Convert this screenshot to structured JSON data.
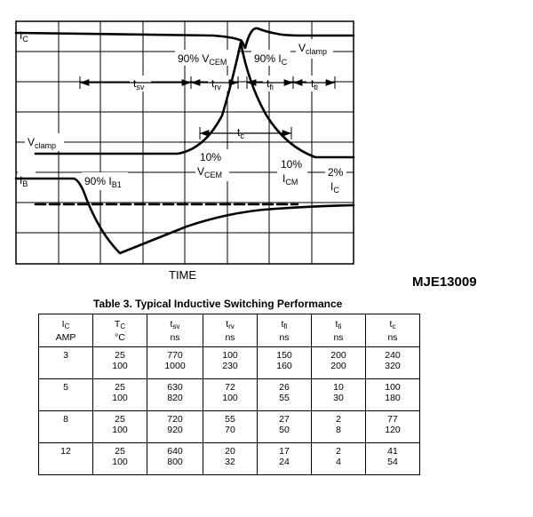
{
  "waveform": {
    "labels": {
      "ic": "I",
      "ic_sub": "C",
      "vclamp_top": "V",
      "vclamp_top_sub": "clamp",
      "pct90_vcem": "90% V",
      "pct90_vcem_sub": "CEM",
      "pct90_ic": "90% I",
      "pct90_ic_sub": "C",
      "tsv": "t",
      "tsv_sub": "sv",
      "trv": "t",
      "trv_sub": "rv",
      "tfi": "t",
      "tfi_sub": "fi",
      "tti": "t",
      "tti_sub": "ti",
      "tc": "t",
      "tc_sub": "c",
      "vclamp_left": "V",
      "vclamp_left_sub": "clamp",
      "pct10_vcem_a": "10%",
      "pct10_vcem_b": "V",
      "pct10_vcem_b_sub": "CEM",
      "pct10_icm_a": "10%",
      "pct10_icm_b": "I",
      "pct10_icm_b_sub": "CM",
      "pct2_ic_a": "2%",
      "pct2_ic_b": "I",
      "pct2_ic_b_sub": "C",
      "ib": "I",
      "ib_sub": "B",
      "pct90_ib": "90% I",
      "pct90_ib_sub": "B1"
    },
    "time_label": "TIME"
  },
  "part_number": "MJE13009",
  "table": {
    "caption": "Table 3. Typical Inductive Switching Performance",
    "headers": [
      {
        "main": "I",
        "sub": "C",
        "unit": "AMP"
      },
      {
        "main": "T",
        "sub": "C",
        "unit": "°C"
      },
      {
        "main": "t",
        "sub": "sv",
        "unit": "ns"
      },
      {
        "main": "t",
        "sub": "rv",
        "unit": "ns"
      },
      {
        "main": "t",
        "sub": "fi",
        "unit": "ns"
      },
      {
        "main": "t",
        "sub": "ti",
        "unit": "ns"
      },
      {
        "main": "t",
        "sub": "c",
        "unit": "ns"
      }
    ],
    "rows": [
      {
        "ic": "3",
        "tc": [
          "25",
          "100"
        ],
        "tsv": [
          "770",
          "1000"
        ],
        "trv": [
          "100",
          "230"
        ],
        "tfi": [
          "150",
          "160"
        ],
        "tti": [
          "200",
          "200"
        ],
        "tcx": [
          "240",
          "320"
        ]
      },
      {
        "ic": "5",
        "tc": [
          "25",
          "100"
        ],
        "tsv": [
          "630",
          "820"
        ],
        "trv": [
          "72",
          "100"
        ],
        "tfi": [
          "26",
          "55"
        ],
        "tti": [
          "10",
          "30"
        ],
        "tcx": [
          "100",
          "180"
        ]
      },
      {
        "ic": "8",
        "tc": [
          "25",
          "100"
        ],
        "tsv": [
          "720",
          "920"
        ],
        "trv": [
          "55",
          "70"
        ],
        "tfi": [
          "27",
          "50"
        ],
        "tti": [
          "2",
          "8"
        ],
        "tcx": [
          "77",
          "120"
        ]
      },
      {
        "ic": "12",
        "tc": [
          "25",
          "100"
        ],
        "tsv": [
          "640",
          "800"
        ],
        "trv": [
          "20",
          "32"
        ],
        "tfi": [
          "17",
          "24"
        ],
        "tti": [
          "2",
          "4"
        ],
        "tcx": [
          "41",
          "54"
        ]
      }
    ]
  }
}
